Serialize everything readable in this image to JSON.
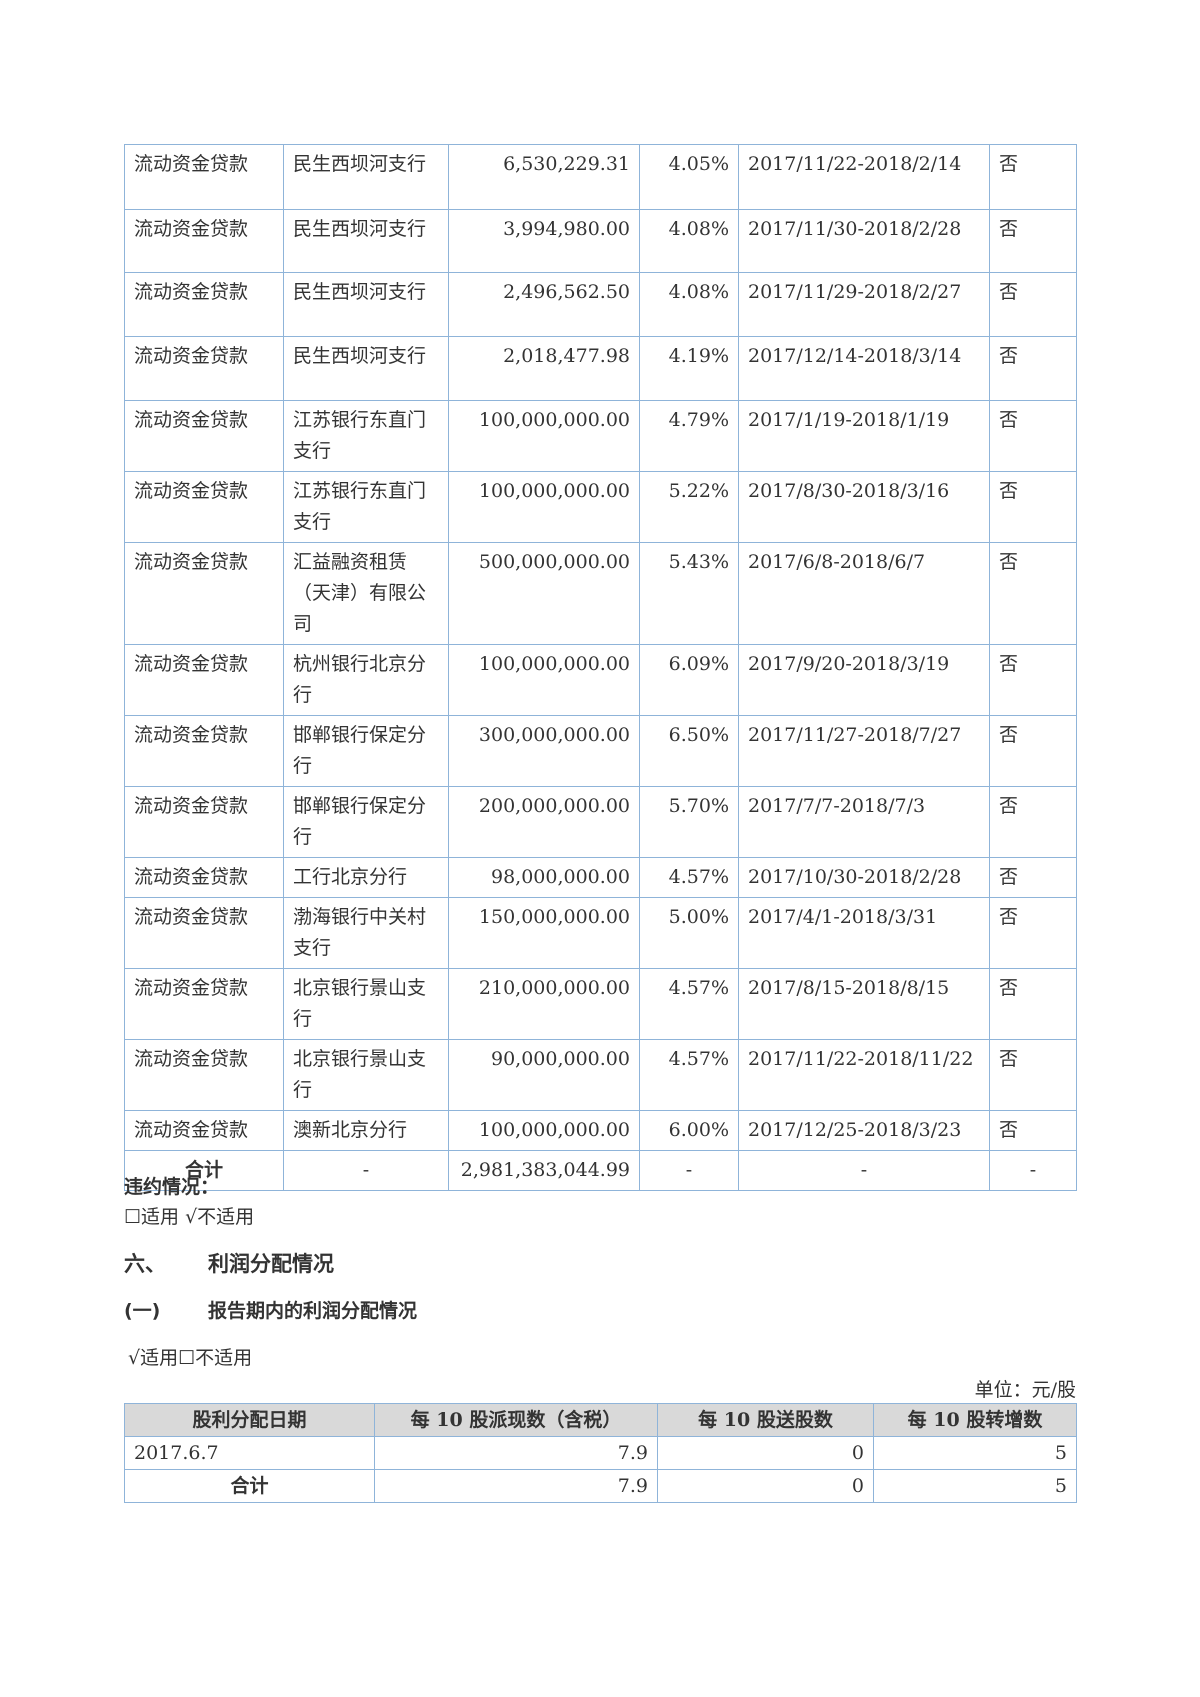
{
  "loans": {
    "rows": [
      [
        "流动资金贷款",
        "民生西坝河支行",
        "6,530,229.31",
        "4.05%",
        "2017/11/22-2018/2/14",
        "否"
      ],
      [
        "流动资金贷款",
        "民生西坝河支行",
        "3,994,980.00",
        "4.08%",
        "2017/11/30-2018/2/28",
        "否"
      ],
      [
        "流动资金贷款",
        "民生西坝河支行",
        "2,496,562.50",
        "4.08%",
        "2017/11/29-2018/2/27",
        "否"
      ],
      [
        "流动资金贷款",
        "民生西坝河支行",
        "2,018,477.98",
        "4.19%",
        "2017/12/14-2018/3/14",
        "否"
      ],
      [
        "流动资金贷款",
        "江苏银行东直门支行",
        "100,000,000.00",
        "4.79%",
        "2017/1/19-2018/1/19",
        "否"
      ],
      [
        "流动资金贷款",
        "江苏银行东直门支行",
        "100,000,000.00",
        "5.22%",
        "2017/8/30-2018/3/16",
        "否"
      ],
      [
        "流动资金贷款",
        "汇益融资租赁（天津）有限公司",
        "500,000,000.00",
        "5.43%",
        "2017/6/8-2018/6/7",
        "否"
      ],
      [
        "流动资金贷款",
        "杭州银行北京分行",
        "100,000,000.00",
        "6.09%",
        "2017/9/20-2018/3/19",
        "否"
      ],
      [
        "流动资金贷款",
        "邯郸银行保定分行",
        "300,000,000.00",
        "6.50%",
        "2017/11/27-2018/7/27",
        "否"
      ],
      [
        "流动资金贷款",
        "邯郸银行保定分行",
        "200,000,000.00",
        "5.70%",
        "2017/7/7-2018/7/3",
        "否"
      ],
      [
        "流动资金贷款",
        "工行北京分行",
        "98,000,000.00",
        "4.57%",
        "2017/10/30-2018/2/28",
        "否"
      ],
      [
        "流动资金贷款",
        "渤海银行中关村支行",
        "150,000,000.00",
        "5.00%",
        "2017/4/1-2018/3/31",
        "否"
      ],
      [
        "流动资金贷款",
        "北京银行景山支行",
        "210,000,000.00",
        "4.57%",
        "2017/8/15-2018/8/15",
        "否"
      ],
      [
        "流动资金贷款",
        "北京银行景山支行",
        "90,000,000.00",
        "4.57%",
        "2017/11/22-2018/11/22",
        "否"
      ],
      [
        "流动资金贷款",
        "澳新北京分行",
        "100,000,000.00",
        "6.00%",
        "2017/12/25-2018/3/23",
        "否"
      ]
    ],
    "total": [
      "合计",
      "-",
      "2,981,383,044.99",
      "-",
      "-",
      "-"
    ]
  },
  "default": {
    "title": "违约情况：",
    "status": "☐适用 √不适用"
  },
  "section": {
    "num": "六、",
    "title": "利润分配情况"
  },
  "subsection": {
    "num": "(一)",
    "title": "报告期内的利润分配情况"
  },
  "dividend": {
    "status": "√适用☐不适用",
    "unit": "单位：元/股",
    "headers": [
      "股利分配日期",
      "每 10 股派现数（含税）",
      "每 10 股送股数",
      "每 10 股转增数"
    ],
    "rows": [
      [
        "2017.6.7",
        "7.9",
        "0",
        "5"
      ],
      [
        "合计",
        "7.9",
        "0",
        "5"
      ]
    ]
  },
  "colors": {
    "border": "#8fb4d9",
    "header_bg": "#d9d9d9"
  }
}
